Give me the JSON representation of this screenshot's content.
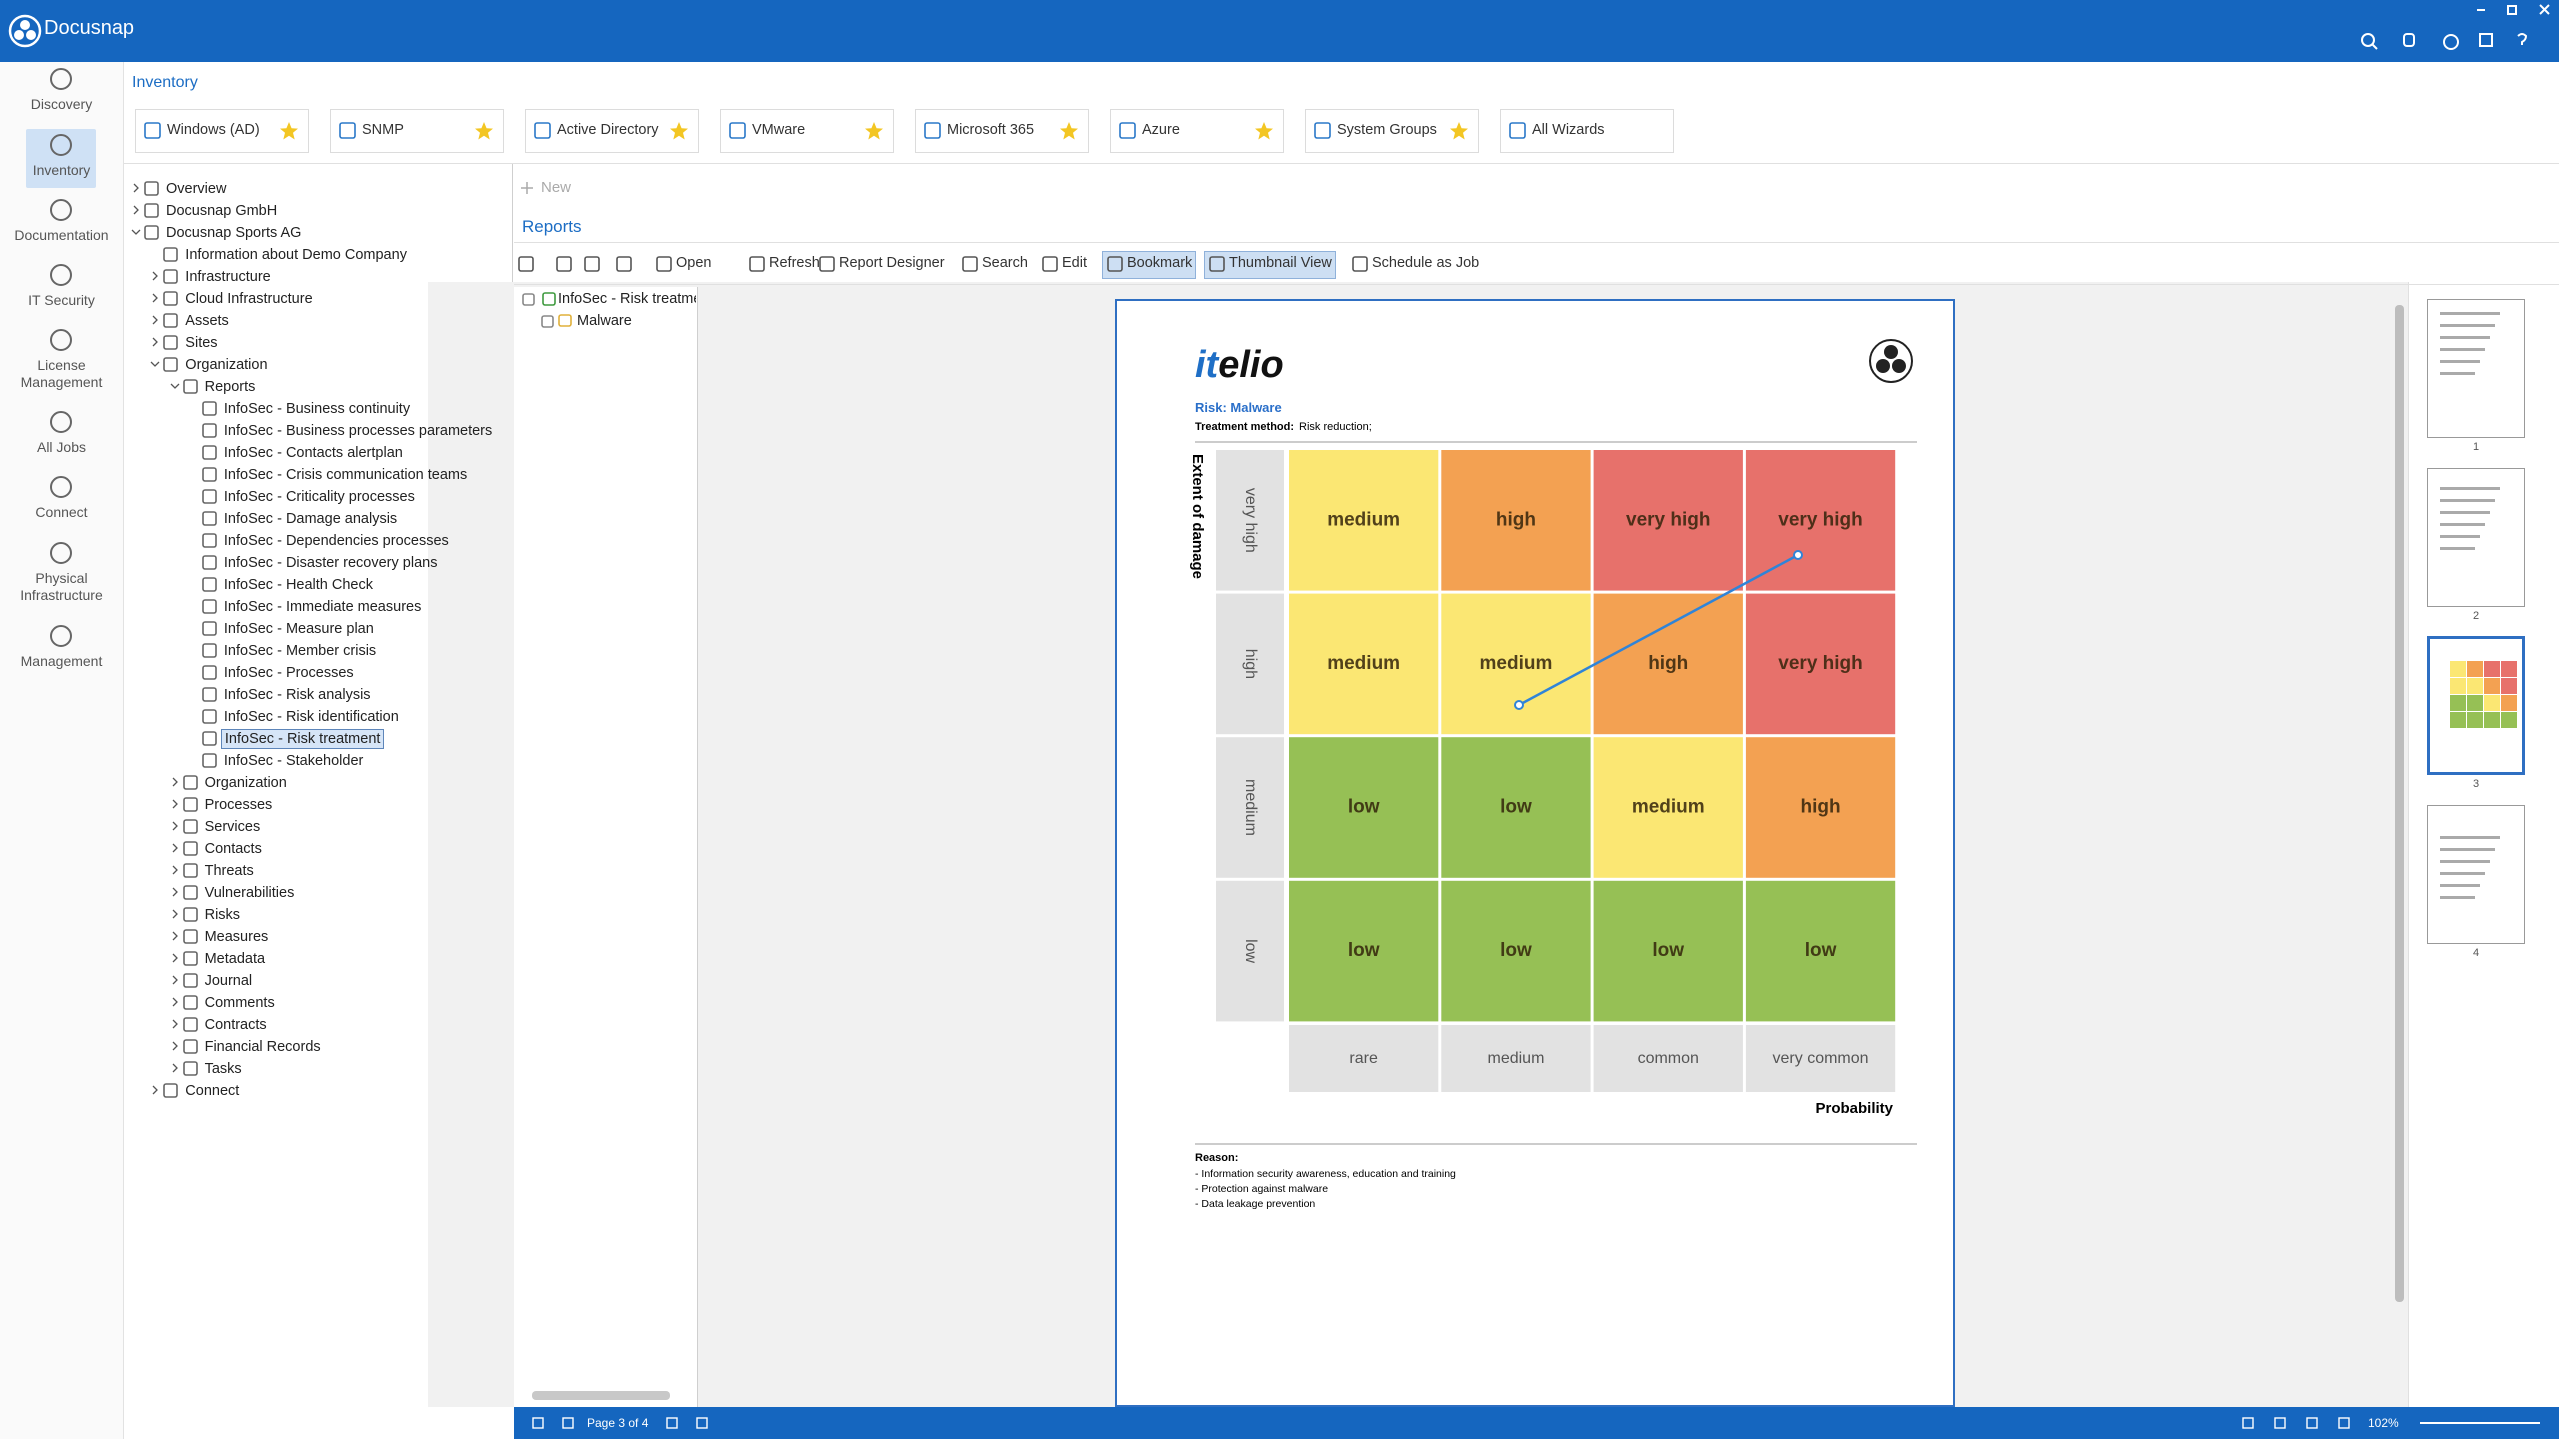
{
  "app": {
    "title": "Docusnap"
  },
  "nav": [
    {
      "label": "Discovery"
    },
    {
      "label": "Inventory",
      "selected": true
    },
    {
      "label": "Documentation"
    },
    {
      "label": "IT Security"
    },
    {
      "label": "License Management"
    },
    {
      "label": "All Jobs"
    },
    {
      "label": "Connect"
    },
    {
      "label": "Physical Infrastructure"
    },
    {
      "label": "Management"
    }
  ],
  "breadcrumb": "Inventory",
  "wizards": [
    {
      "label": "Windows (AD)",
      "favorite": true
    },
    {
      "label": "SNMP",
      "favorite": true
    },
    {
      "label": "Active Directory",
      "favorite": true
    },
    {
      "label": "VMware",
      "favorite": true
    },
    {
      "label": "Microsoft 365",
      "favorite": true
    },
    {
      "label": "Azure",
      "favorite": true
    },
    {
      "label": "System Groups",
      "favorite": true
    },
    {
      "label": "All Wizards",
      "favorite": false
    }
  ],
  "tree": [
    {
      "label": "Overview",
      "collapsed": true
    },
    {
      "label": "Docusnap GmbH",
      "collapsed": true
    },
    {
      "label": "Docusnap Sports AG",
      "children": [
        {
          "label": "Information about Demo Company"
        },
        {
          "label": "Infrastructure",
          "collapsed": true
        },
        {
          "label": "Cloud Infrastructure",
          "collapsed": true
        },
        {
          "label": "Assets",
          "collapsed": true
        },
        {
          "label": "Sites",
          "collapsed": true
        },
        {
          "label": "Organization",
          "children": [
            {
              "label": "Reports",
              "children": [
                {
                  "label": "InfoSec - Business continuity"
                },
                {
                  "label": "InfoSec - Business processes parameters"
                },
                {
                  "label": "InfoSec - Contacts alertplan"
                },
                {
                  "label": "InfoSec - Crisis communication teams"
                },
                {
                  "label": "InfoSec - Criticality processes"
                },
                {
                  "label": "InfoSec - Damage analysis"
                },
                {
                  "label": "InfoSec - Dependencies processes"
                },
                {
                  "label": "InfoSec - Disaster recovery plans"
                },
                {
                  "label": "InfoSec - Health Check"
                },
                {
                  "label": "InfoSec - Immediate measures"
                },
                {
                  "label": "InfoSec - Measure plan"
                },
                {
                  "label": "InfoSec - Member crisis"
                },
                {
                  "label": "InfoSec - Processes"
                },
                {
                  "label": "InfoSec - Risk analysis"
                },
                {
                  "label": "InfoSec - Risk identification"
                },
                {
                  "label": "InfoSec - Risk treatment",
                  "selected": true
                },
                {
                  "label": "InfoSec - Stakeholder"
                }
              ]
            },
            {
              "label": "Organization",
              "collapsed": true
            },
            {
              "label": "Processes",
              "collapsed": true
            },
            {
              "label": "Services",
              "collapsed": true
            },
            {
              "label": "Contacts",
              "collapsed": true
            },
            {
              "label": "Threats",
              "collapsed": true
            },
            {
              "label": "Vulnerabilities",
              "collapsed": true
            },
            {
              "label": "Risks",
              "collapsed": true
            },
            {
              "label": "Measures",
              "collapsed": true
            },
            {
              "label": "Metadata",
              "collapsed": true
            },
            {
              "label": "Journal",
              "collapsed": true
            },
            {
              "label": "Comments",
              "collapsed": true
            },
            {
              "label": "Contracts",
              "collapsed": true
            },
            {
              "label": "Financial Records",
              "collapsed": true
            },
            {
              "label": "Tasks",
              "collapsed": true
            }
          ]
        },
        {
          "label": "Connect",
          "collapsed": true
        }
      ]
    }
  ],
  "reports": {
    "new": "New",
    "tab": "Reports",
    "toolbar": [
      {
        "label": "Open"
      },
      {
        "label": "Refresh"
      },
      {
        "label": "Report Designer"
      },
      {
        "label": "Search"
      },
      {
        "label": "Edit"
      },
      {
        "label": "Bookmark",
        "active": true
      },
      {
        "label": "Thumbnail View",
        "active": true
      },
      {
        "label": "Schedule as Job"
      }
    ],
    "report_tree": {
      "root": "InfoSec - Risk treatmer",
      "child": "Malware"
    }
  },
  "document": {
    "logo_prefix": "it",
    "logo_suffix": "elio",
    "risk": "Risk: Malware",
    "treatment_label": "Treatment method:",
    "treatment_value": "Risk reduction;",
    "y_axis_title": "Extent of damage",
    "x_axis_title": "Probability",
    "rows": [
      "very high",
      "high",
      "medium",
      "low"
    ],
    "columns": [
      "rare",
      "medium",
      "common",
      "very common"
    ],
    "cells": [
      [
        {
          "label": "medium",
          "color": "#fbe773"
        },
        {
          "label": "high",
          "color": "#f3a152"
        },
        {
          "label": "very high",
          "color": "#e7716b"
        },
        {
          "label": "very high",
          "color": "#e7716b"
        }
      ],
      [
        {
          "label": "medium",
          "color": "#fbe773"
        },
        {
          "label": "medium",
          "color": "#fbe773"
        },
        {
          "label": "high",
          "color": "#f3a152"
        },
        {
          "label": "very high",
          "color": "#e7716b"
        }
      ],
      [
        {
          "label": "low",
          "color": "#96c055"
        },
        {
          "label": "low",
          "color": "#96c055"
        },
        {
          "label": "medium",
          "color": "#fbe773"
        },
        {
          "label": "high",
          "color": "#f3a152"
        }
      ],
      [
        {
          "label": "low",
          "color": "#96c055"
        },
        {
          "label": "low",
          "color": "#96c055"
        },
        {
          "label": "low",
          "color": "#96c055"
        },
        {
          "label": "low",
          "color": "#96c055"
        }
      ]
    ],
    "reason_title": "Reason:",
    "reasons": [
      "- Information security awareness, education and training",
      "- Protection against malware",
      "- Data leakage prevention"
    ]
  },
  "thumbnails": [
    {
      "label": "1"
    },
    {
      "label": "2"
    },
    {
      "label": "3",
      "selected": true
    },
    {
      "label": "4"
    }
  ],
  "status": {
    "page": "Page 3 of 4",
    "zoom": "102%"
  }
}
